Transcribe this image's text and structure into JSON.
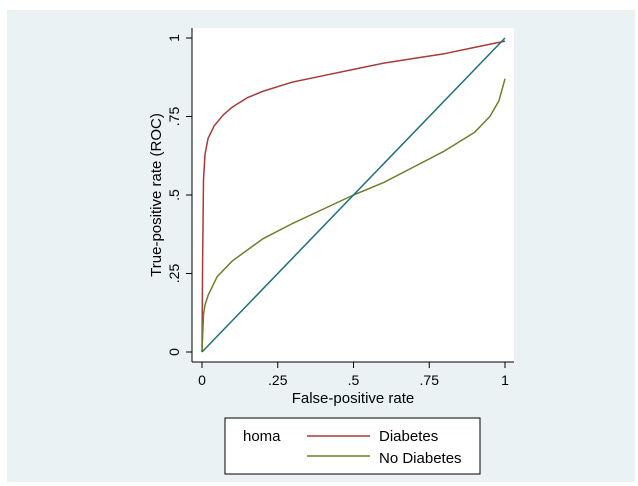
{
  "chart_data": {
    "type": "line",
    "xlabel": "False-positive rate",
    "ylabel": "True-positive rate (ROC)",
    "xlim": [
      0,
      1
    ],
    "ylim": [
      0,
      1
    ],
    "x_ticks": [
      {
        "value": 0,
        "label": "0"
      },
      {
        "value": 0.25,
        "label": ".25"
      },
      {
        "value": 0.5,
        "label": ".5"
      },
      {
        "value": 0.75,
        "label": ".75"
      },
      {
        "value": 1,
        "label": "1"
      }
    ],
    "y_ticks": [
      {
        "value": 0,
        "label": "0"
      },
      {
        "value": 0.25,
        "label": ".25"
      },
      {
        "value": 0.5,
        "label": ".5"
      },
      {
        "value": 0.75,
        "label": ".75"
      },
      {
        "value": 1,
        "label": "1"
      }
    ],
    "grid": false,
    "legend": {
      "title": "homa",
      "position": "bottom"
    },
    "series": [
      {
        "name": "Diabetes",
        "color": "#a83a3a",
        "x": [
          0,
          0.002,
          0.005,
          0.01,
          0.02,
          0.04,
          0.07,
          0.1,
          0.15,
          0.2,
          0.3,
          0.4,
          0.5,
          0.6,
          0.7,
          0.8,
          0.9,
          1.0
        ],
        "y": [
          0,
          0.29,
          0.55,
          0.63,
          0.68,
          0.72,
          0.755,
          0.78,
          0.81,
          0.83,
          0.86,
          0.88,
          0.9,
          0.92,
          0.935,
          0.95,
          0.97,
          0.99
        ]
      },
      {
        "name": "No Diabetes",
        "color": "#6b7f2e",
        "x": [
          0,
          0.005,
          0.01,
          0.02,
          0.05,
          0.1,
          0.2,
          0.3,
          0.4,
          0.5,
          0.6,
          0.7,
          0.8,
          0.9,
          0.95,
          0.98,
          1.0
        ],
        "y": [
          0,
          0.12,
          0.15,
          0.18,
          0.24,
          0.29,
          0.36,
          0.41,
          0.455,
          0.5,
          0.54,
          0.59,
          0.64,
          0.7,
          0.75,
          0.8,
          0.87
        ]
      },
      {
        "name": "",
        "color": "#1f6e7e",
        "x": [
          0,
          1
        ],
        "y": [
          0,
          1
        ]
      }
    ]
  },
  "colors": {
    "outer_background": "#eaf2f3",
    "plot_background": "#ffffff",
    "axis": "#000000"
  }
}
